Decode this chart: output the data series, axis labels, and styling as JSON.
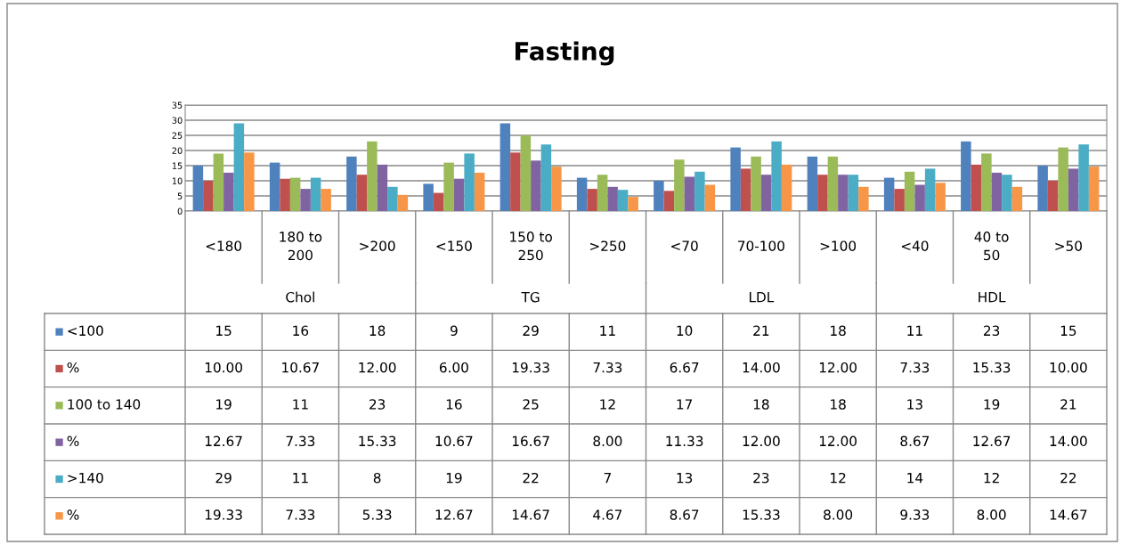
{
  "chart_data": {
    "type": "bar",
    "title": "Fasting",
    "categories": [
      "<180",
      "180 to\n200",
      ">200",
      "<150",
      "150 to\n250",
      ">250",
      "<70",
      "70-100",
      ">100",
      "<40",
      "40 to\n50",
      ">50"
    ],
    "annotations": [
      "Chol",
      "TG",
      "LDL",
      "HDL"
    ],
    "series": [
      {
        "name": "<100",
        "color": "#4f81bd",
        "values": [
          15,
          16,
          18,
          9,
          29,
          11,
          10,
          21,
          18,
          11,
          23,
          15
        ],
        "value_labels": [
          "15",
          "16",
          "18",
          "9",
          "29",
          "11",
          "10",
          "21",
          "18",
          "11",
          "23",
          "15"
        ]
      },
      {
        "name": "%",
        "color": "#c0504d",
        "values": [
          10.0,
          10.67,
          12.0,
          6.0,
          19.33,
          7.33,
          6.67,
          14.0,
          12.0,
          7.33,
          15.33,
          10.0
        ],
        "value_labels": [
          "10.00",
          "10.67",
          "12.00",
          "6.00",
          "19.33",
          "7.33",
          "6.67",
          "14.00",
          "12.00",
          "7.33",
          "15.33",
          "10.00"
        ]
      },
      {
        "name": "100 to 140",
        "color": "#9bbb59",
        "values": [
          19,
          11,
          23,
          16,
          25,
          12,
          17,
          18,
          18,
          13,
          19,
          21
        ],
        "value_labels": [
          "19",
          "11",
          "23",
          "16",
          "25",
          "12",
          "17",
          "18",
          "18",
          "13",
          "19",
          "21"
        ]
      },
      {
        "name": "%",
        "color": "#8064a2",
        "values": [
          12.67,
          7.33,
          15.33,
          10.67,
          16.67,
          8.0,
          11.33,
          12.0,
          12.0,
          8.67,
          12.67,
          14.0
        ],
        "value_labels": [
          "12.67",
          "7.33",
          "15.33",
          "10.67",
          "16.67",
          "8.00",
          "11.33",
          "12.00",
          "12.00",
          "8.67",
          "12.67",
          "14.00"
        ]
      },
      {
        "name": ">140",
        "color": "#4bacc6",
        "values": [
          29,
          11,
          8,
          19,
          22,
          7,
          13,
          23,
          12,
          14,
          12,
          22
        ],
        "value_labels": [
          "29",
          "11",
          "8",
          "19",
          "22",
          "7",
          "13",
          "23",
          "12",
          "14",
          "12",
          "22"
        ]
      },
      {
        "name": "%",
        "color": "#f79646",
        "values": [
          19.33,
          7.33,
          5.33,
          12.67,
          14.67,
          4.67,
          8.67,
          15.33,
          8.0,
          9.33,
          8.0,
          14.67
        ],
        "value_labels": [
          "19.33",
          "7.33",
          "5.33",
          "12.67",
          "14.67",
          "4.67",
          "8.67",
          "15.33",
          "8.00",
          "9.33",
          "8.00",
          "14.67"
        ]
      }
    ],
    "ylim": [
      0,
      35
    ],
    "yticks": [
      0,
      5,
      10,
      15,
      20,
      25,
      30,
      35
    ],
    "grid": "y",
    "legend": "bottom"
  }
}
